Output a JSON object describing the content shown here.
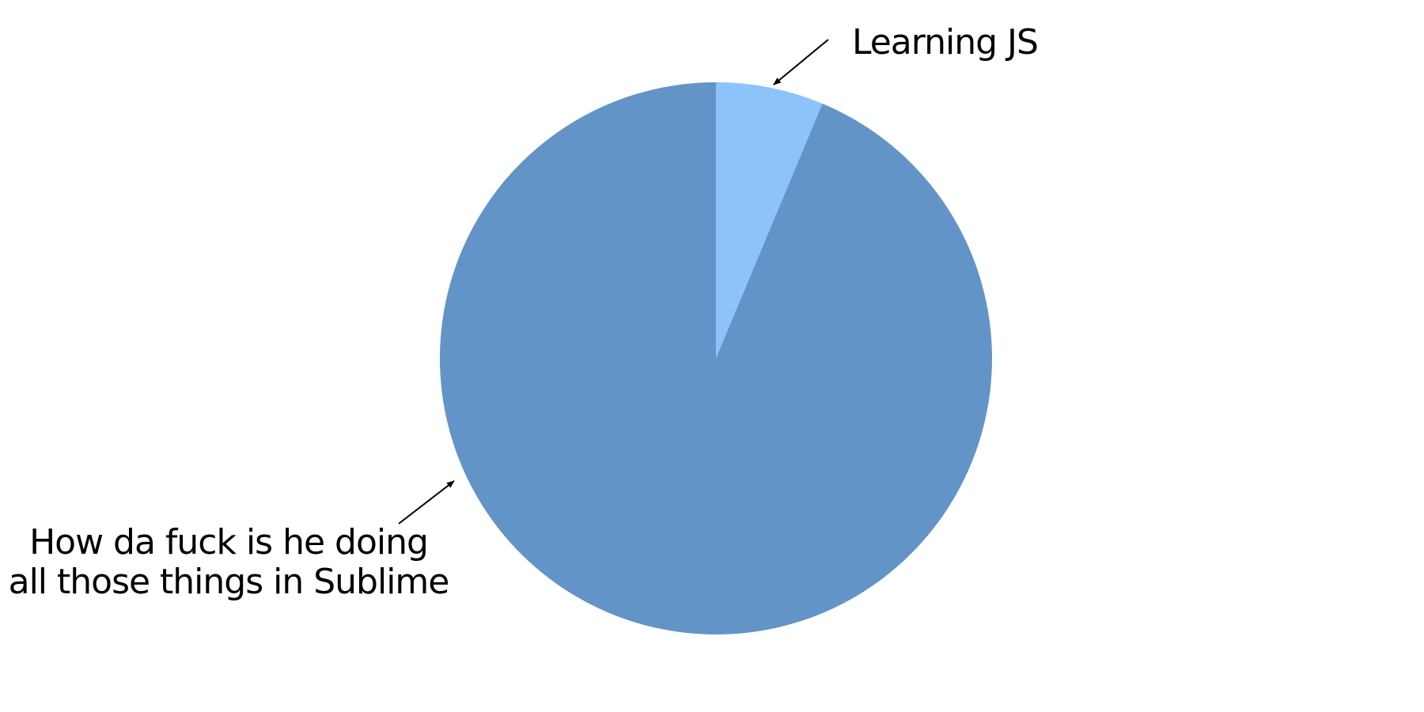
{
  "chart_data": {
    "type": "pie",
    "title": "",
    "slices": [
      {
        "label": "Learning JS",
        "value": 6.3,
        "color": "#8DC3FB"
      },
      {
        "label_lines": [
          "How da fuck is he doing",
          "all those things in Sublime"
        ],
        "value": 93.7,
        "color": "#6294C8"
      }
    ],
    "start_angle_deg": 0,
    "direction": "clockwise",
    "legend": "none"
  }
}
